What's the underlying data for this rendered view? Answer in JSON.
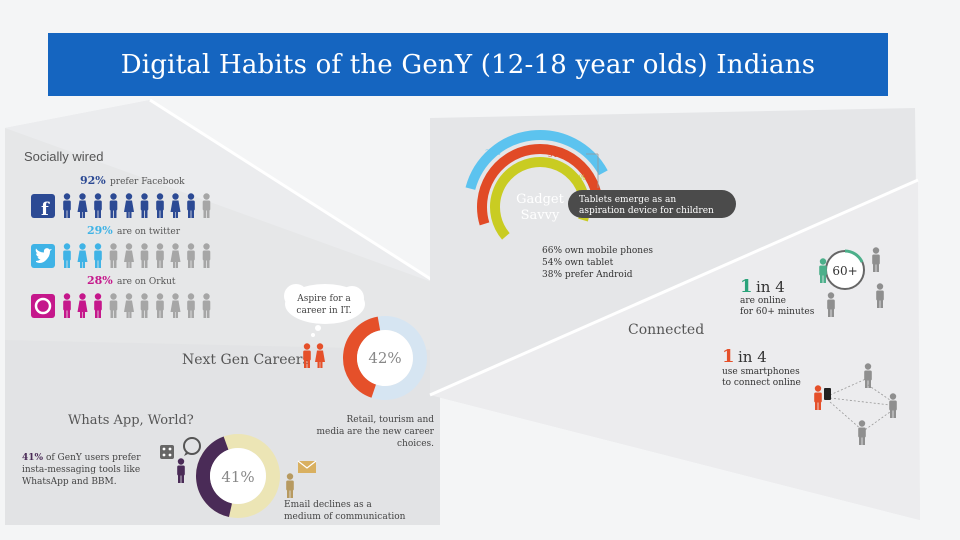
{
  "title": "Digital Habits of the GenY (12-18 year olds) Indians",
  "socially_wired": {
    "heading": "Socially wired",
    "rows": [
      {
        "pct": "92%",
        "text": "prefer Facebook",
        "icon": "facebook-icon",
        "color": "#2c4a94",
        "filled": 9,
        "total": 10
      },
      {
        "pct": "29%",
        "text": "are on twitter",
        "icon": "twitter-icon",
        "color": "#3fb3e6",
        "filled": 3,
        "total": 10
      },
      {
        "pct": "28%",
        "text": "are on Orkut",
        "icon": "orkut-icon",
        "color": "#c5178b",
        "filled": 3,
        "total": 10
      }
    ]
  },
  "next_gen_careers": {
    "heading": "Next Gen Careers",
    "bubble": "Aspire for a career in IT.",
    "pct": "42%",
    "pct_value": 42,
    "note": "Retail, tourism and media are the new career choices."
  },
  "whatsapp": {
    "heading": "Whats App, World?",
    "pct_bold": "41%",
    "text": "of GenY users prefer insta-messaging tools like WhatsApp and BBM.",
    "pct": "41%",
    "pct_value": 41,
    "note": "Email declines as a medium of communication"
  },
  "gadget_savvy": {
    "label": "Gadget Savvy",
    "banner": "Tablets emerge as an aspiration device for children",
    "rings": [
      {
        "pct": "38%",
        "value": 38,
        "color": "#5cc3ef"
      },
      {
        "pct": "54%",
        "value": 54,
        "color": "#e14a26"
      },
      {
        "pct": "66%",
        "value": 66,
        "color": "#c9cc22"
      }
    ],
    "facts": [
      "66% own mobile phones",
      "54% own tablet",
      "38% prefer Android"
    ]
  },
  "connected": {
    "heading": "Connected",
    "stat1": {
      "big": "1 in 4",
      "text": "are online for 60+ minutes",
      "badge": "60+"
    },
    "stat2": {
      "big": "1 in 4",
      "text": "use smartphones to connect online"
    }
  },
  "colors": {
    "accent_blue": "#1565c0",
    "purple": "#4a2b57",
    "orange": "#e5502a",
    "green": "#4caf8a",
    "grey_person": "#8f8f8f"
  }
}
